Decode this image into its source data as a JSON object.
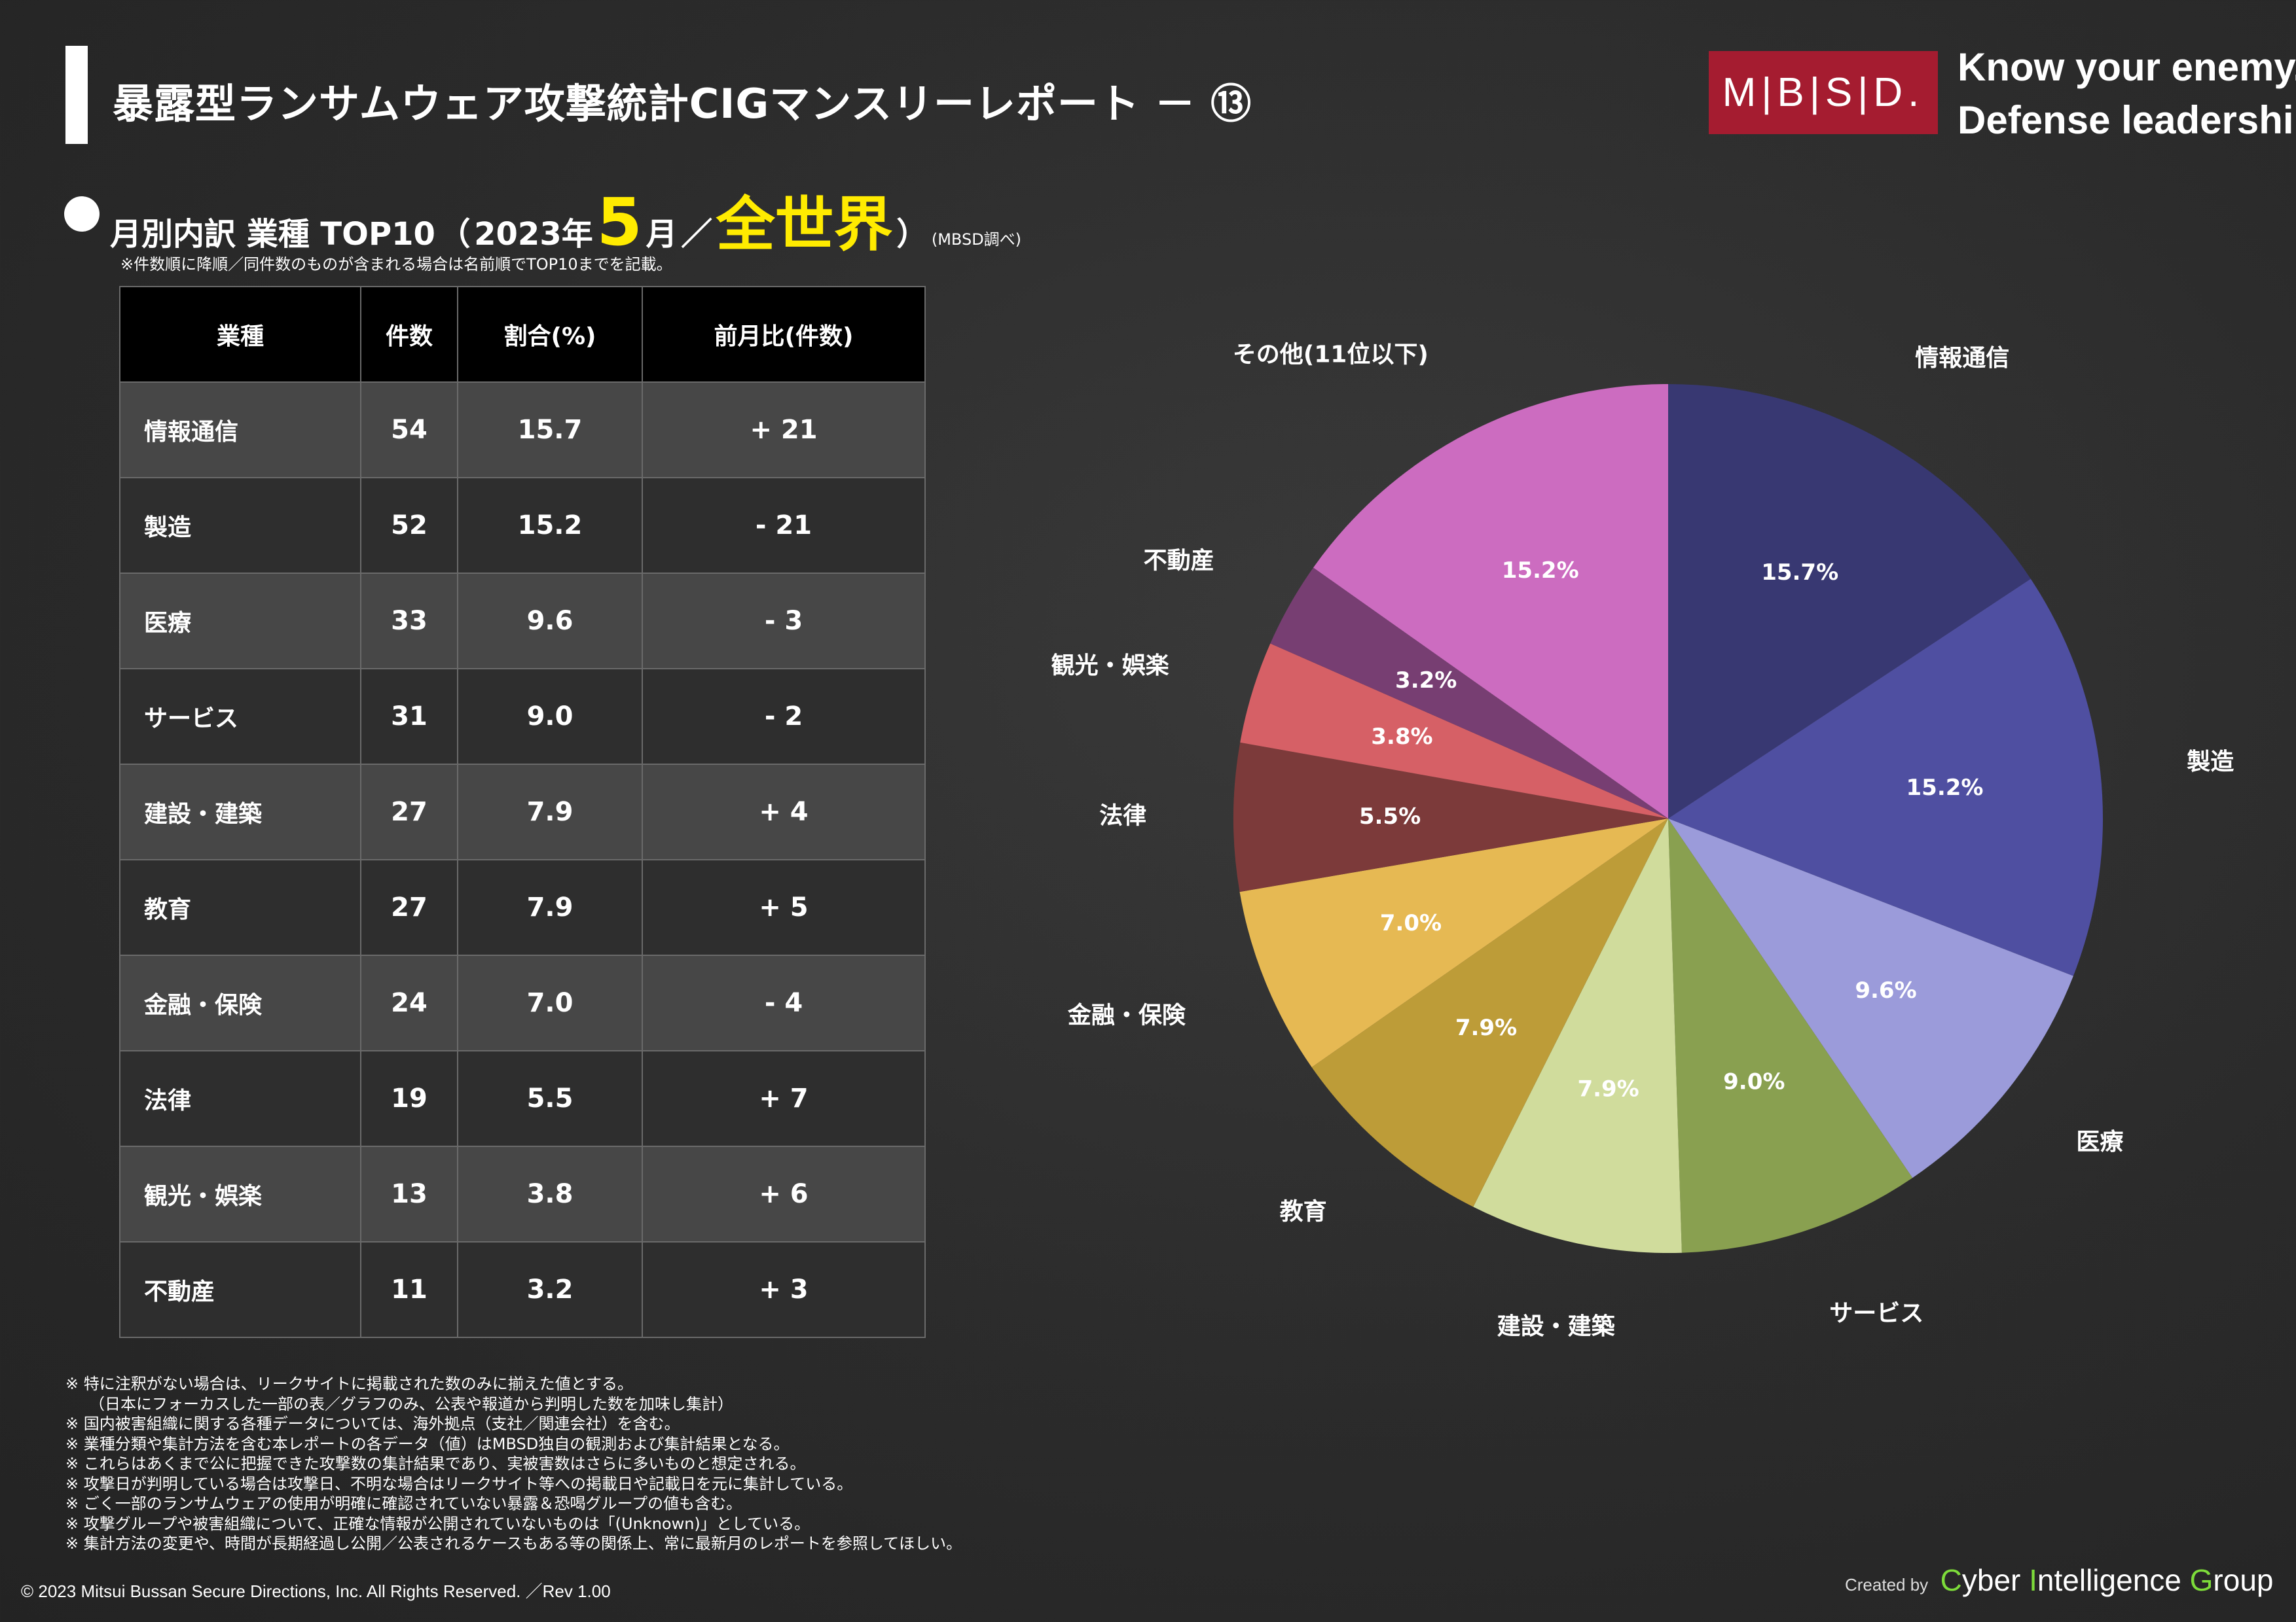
{
  "header": {
    "title": "暴露型ランサムウェア攻撃統計CIGマンスリーレポート － ⑬",
    "logo_text": "M|B|S|D.",
    "slogan_line1": "Know your enemy.",
    "slogan_line2": "Defense leadership.",
    "slogan_mark": "®",
    "brand_color": "#a51c30"
  },
  "section": {
    "label": "月別内訳 業種 TOP10",
    "paren_open": "（",
    "year": "2023年",
    "month_num": "5",
    "month_unit": "月",
    "slash": "／",
    "region": "全世界",
    "paren_close": "）",
    "source_note": "(MBSD調べ)",
    "sort_note": "※件数順に降順／同件数のものが含まれる場合は名前順でTOP10までを記載。",
    "highlight_color": "#ffeb00"
  },
  "table": {
    "headers": [
      "業種",
      "件数",
      "割合(%)",
      "前月比(件数)"
    ],
    "rows": [
      {
        "industry": "情報通信",
        "count": "54",
        "share": "15.7",
        "mom": "+ 21"
      },
      {
        "industry": "製造",
        "count": "52",
        "share": "15.2",
        "mom": "- 21"
      },
      {
        "industry": "医療",
        "count": "33",
        "share": "9.6",
        "mom": "- 3"
      },
      {
        "industry": "サービス",
        "count": "31",
        "share": "9.0",
        "mom": "- 2"
      },
      {
        "industry": "建設・建築",
        "count": "27",
        "share": "7.9",
        "mom": "+ 4"
      },
      {
        "industry": "教育",
        "count": "27",
        "share": "7.9",
        "mom": "+ 5"
      },
      {
        "industry": "金融・保険",
        "count": "24",
        "share": "7.0",
        "mom": "- 4"
      },
      {
        "industry": "法律",
        "count": "19",
        "share": "5.5",
        "mom": "+ 7"
      },
      {
        "industry": "観光・娯楽",
        "count": "13",
        "share": "3.8",
        "mom": "+ 6"
      },
      {
        "industry": "不動産",
        "count": "11",
        "share": "3.2",
        "mom": "+ 3"
      }
    ]
  },
  "chart_data": {
    "type": "pie",
    "start": "12 o'clock, clockwise",
    "labels": [
      "情報通信",
      "製造",
      "医療",
      "サービス",
      "建設・建築",
      "教育",
      "金融・保険",
      "法律",
      "観光・娯楽",
      "不動産",
      "その他(11位以下)"
    ],
    "values": [
      15.7,
      15.2,
      9.6,
      9.0,
      7.9,
      7.9,
      7.0,
      5.5,
      3.8,
      3.2,
      15.2
    ],
    "value_labels": [
      "15.7%",
      "15.2%",
      "9.6%",
      "9.0%",
      "7.9%",
      "7.9%",
      "7.0%",
      "5.5%",
      "3.8%",
      "3.2%",
      "15.2%"
    ],
    "colors": [
      "#383872",
      "#4f4fa1",
      "#9b9bda",
      "#89a050",
      "#d0dc9c",
      "#bd9c38",
      "#e6b953",
      "#7c3a3a",
      "#d66066",
      "#773e72",
      "#cc6cc0"
    ]
  },
  "footnotes": [
    "※ 特に注釈がない場合は、リークサイトに掲載された数のみに揃えた値とする。",
    "（日本にフォーカスした一部の表／グラフのみ、公表や報道から判明した数を加味し集計）",
    "※ 国内被害組織に関する各種データについては、海外拠点（支社／関連会社）を含む。",
    "※ 業種分類や集計方法を含む本レポートの各データ（値）はMBSD独自の観測および集計結果となる。",
    "※ これらはあくまで公に把握できた攻撃数の集計結果であり、実被害数はさらに多いものと想定される。",
    "※ 攻撃日が判明している場合は攻撃日、不明な場合はリークサイト等への掲載日や記載日を元に集計している。",
    "※ ごく一部のランサムウェアの使用が明確に確認されていない暴露＆恐喝グループの値も含む。",
    "※ 攻撃グループや被害組織について、正確な情報が公開されていないものは「(Unknown)」としている。",
    "※ 集計方法の変更や、時間が長期経過し公開／公表されるケースもある等の関係上、常に最新月のレポートを参照してほしい。"
  ],
  "footer": {
    "copyright": "© 2023 Mitsui Bussan Secure Directions, Inc.  All Rights Reserved. ／Rev 1.00",
    "created_by": "Created by",
    "group_words": [
      {
        "cap": "C",
        "rest": "yber "
      },
      {
        "cap": "I",
        "rest": "ntelligence "
      },
      {
        "cap": "G",
        "rest": "roup"
      }
    ],
    "accent_color": "#7ddc3a"
  }
}
